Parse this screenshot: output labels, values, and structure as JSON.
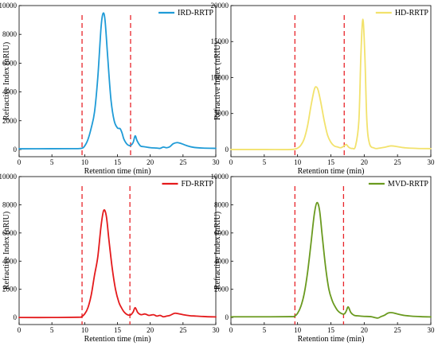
{
  "chart_data": [
    {
      "type": "line",
      "xlabel": "Retention time (min)",
      "ylabel": "Refractive Index (nRIU)",
      "xlim": [
        0,
        30
      ],
      "ylim": [
        -500,
        10000
      ],
      "xticks": [
        0,
        5,
        10,
        15,
        20,
        25,
        30
      ],
      "yticks": [
        0,
        2000,
        4000,
        6000,
        8000,
        10000
      ],
      "grid": false,
      "legend_position": "top-right",
      "vlines": [
        9.6,
        17.0
      ],
      "series": [
        {
          "name": "IRD-RRTP",
          "color": "#1f9bd7",
          "points": [
            [
              0,
              50
            ],
            [
              5,
              55
            ],
            [
              8,
              60
            ],
            [
              9.5,
              80
            ],
            [
              10,
              250
            ],
            [
              10.5,
              700
            ],
            [
              11,
              1500
            ],
            [
              11.5,
              2600
            ],
            [
              12,
              5000
            ],
            [
              12.5,
              8500
            ],
            [
              12.8,
              9450
            ],
            [
              13.1,
              9000
            ],
            [
              13.5,
              6500
            ],
            [
              14,
              3500
            ],
            [
              14.5,
              2000
            ],
            [
              15,
              1500
            ],
            [
              15.4,
              1450
            ],
            [
              15.7,
              1150
            ],
            [
              16,
              700
            ],
            [
              16.5,
              350
            ],
            [
              17,
              280
            ],
            [
              17.4,
              500
            ],
            [
              17.7,
              950
            ],
            [
              18,
              600
            ],
            [
              18.5,
              250
            ],
            [
              19,
              200
            ],
            [
              20,
              130
            ],
            [
              21,
              100
            ],
            [
              21.5,
              80
            ],
            [
              22,
              170
            ],
            [
              22.5,
              120
            ],
            [
              23,
              200
            ],
            [
              23.5,
              400
            ],
            [
              24.1,
              480
            ],
            [
              24.7,
              420
            ],
            [
              25.5,
              280
            ],
            [
              26.5,
              160
            ],
            [
              28,
              100
            ],
            [
              30,
              80
            ]
          ]
        }
      ]
    },
    {
      "type": "line",
      "xlabel": "Retention time (min)",
      "ylabel": "Refractive Index (nRIU)",
      "xlim": [
        0,
        30
      ],
      "ylim": [
        -1000,
        20000
      ],
      "xticks": [
        0,
        5,
        10,
        15,
        20,
        25,
        30
      ],
      "yticks": [
        0,
        5000,
        10000,
        15000,
        20000
      ],
      "grid": false,
      "legend_position": "top-right",
      "vlines": [
        9.6,
        17.0
      ],
      "series": [
        {
          "name": "HD-RRTP",
          "color": "#f2e26c",
          "points": [
            [
              0,
              0
            ],
            [
              5,
              0
            ],
            [
              9,
              0
            ],
            [
              10,
              200
            ],
            [
              10.5,
              600
            ],
            [
              11,
              1500
            ],
            [
              11.5,
              3300
            ],
            [
              12,
              6000
            ],
            [
              12.5,
              8300
            ],
            [
              12.8,
              8700
            ],
            [
              13.1,
              8200
            ],
            [
              13.5,
              6500
            ],
            [
              14,
              4000
            ],
            [
              14.5,
              2000
            ],
            [
              15,
              1000
            ],
            [
              15.5,
              500
            ],
            [
              16,
              350
            ],
            [
              16.5,
              250
            ],
            [
              17,
              500
            ],
            [
              17.3,
              700
            ],
            [
              17.7,
              300
            ],
            [
              18.2,
              150
            ],
            [
              18.7,
              500
            ],
            [
              19.2,
              4000
            ],
            [
              19.5,
              13000
            ],
            [
              19.8,
              18100
            ],
            [
              20.1,
              13000
            ],
            [
              20.4,
              4000
            ],
            [
              20.8,
              800
            ],
            [
              21.5,
              200
            ],
            [
              22,
              150
            ],
            [
              23,
              300
            ],
            [
              24,
              500
            ],
            [
              25,
              400
            ],
            [
              26,
              250
            ],
            [
              28,
              150
            ],
            [
              30,
              120
            ]
          ]
        }
      ]
    },
    {
      "type": "line",
      "xlabel": "Retention time (min)",
      "ylabel": "Refractive Index (nRIU)",
      "xlim": [
        0,
        30
      ],
      "ylim": [
        -500,
        10000
      ],
      "xticks": [
        0,
        5,
        10,
        15,
        20,
        25,
        30
      ],
      "yticks": [
        0,
        2000,
        4000,
        6000,
        8000,
        10000
      ],
      "grid": false,
      "legend_position": "top-right",
      "vlines": [
        9.6,
        16.9
      ],
      "series": [
        {
          "name": "FD-RRTP",
          "color": "#e41a1c",
          "points": [
            [
              0,
              0
            ],
            [
              5,
              0
            ],
            [
              9,
              20
            ],
            [
              9.5,
              50
            ],
            [
              10,
              250
            ],
            [
              10.5,
              700
            ],
            [
              11,
              1600
            ],
            [
              11.5,
              3000
            ],
            [
              12,
              4300
            ],
            [
              12.5,
              6500
            ],
            [
              12.9,
              7600
            ],
            [
              13.3,
              7200
            ],
            [
              13.7,
              5500
            ],
            [
              14.2,
              3500
            ],
            [
              14.7,
              2000
            ],
            [
              15.2,
              1100
            ],
            [
              15.6,
              700
            ],
            [
              16,
              400
            ],
            [
              16.5,
              200
            ],
            [
              17,
              180
            ],
            [
              17.4,
              400
            ],
            [
              17.7,
              700
            ],
            [
              18.1,
              350
            ],
            [
              18.6,
              200
            ],
            [
              19.2,
              250
            ],
            [
              19.8,
              150
            ],
            [
              20.5,
              200
            ],
            [
              21,
              100
            ],
            [
              21.5,
              150
            ],
            [
              22,
              50
            ],
            [
              22.5,
              100
            ],
            [
              23,
              150
            ],
            [
              23.7,
              300
            ],
            [
              24.3,
              270
            ],
            [
              25,
              200
            ],
            [
              26,
              130
            ],
            [
              27,
              100
            ],
            [
              28.5,
              60
            ],
            [
              30,
              40
            ]
          ]
        }
      ]
    },
    {
      "type": "line",
      "xlabel": "Retention time (min)",
      "ylabel": "Refractive Index (nRIU)",
      "xlim": [
        0,
        30
      ],
      "ylim": [
        -500,
        10000
      ],
      "xticks": [
        0,
        5,
        10,
        15,
        20,
        25,
        30
      ],
      "yticks": [
        0,
        2000,
        4000,
        6000,
        8000,
        10000
      ],
      "grid": false,
      "legend_position": "top-right",
      "vlines": [
        9.6,
        16.9
      ],
      "series": [
        {
          "name": "MVD-RRTP",
          "color": "#6a9a1f",
          "points": [
            [
              0,
              50
            ],
            [
              5,
              50
            ],
            [
              9,
              60
            ],
            [
              9.5,
              80
            ],
            [
              10,
              300
            ],
            [
              10.5,
              800
            ],
            [
              11,
              1700
            ],
            [
              11.5,
              3200
            ],
            [
              12,
              5200
            ],
            [
              12.5,
              7300
            ],
            [
              12.9,
              8150
            ],
            [
              13.3,
              7600
            ],
            [
              13.7,
              5800
            ],
            [
              14.2,
              3600
            ],
            [
              14.7,
              2000
            ],
            [
              15.2,
              1200
            ],
            [
              15.6,
              800
            ],
            [
              16,
              500
            ],
            [
              16.5,
              300
            ],
            [
              17,
              250
            ],
            [
              17.3,
              450
            ],
            [
              17.6,
              750
            ],
            [
              18,
              350
            ],
            [
              18.5,
              150
            ],
            [
              19,
              120
            ],
            [
              20,
              80
            ],
            [
              21,
              60
            ],
            [
              22,
              -40
            ],
            [
              22.5,
              60
            ],
            [
              23,
              150
            ],
            [
              23.6,
              320
            ],
            [
              24.2,
              340
            ],
            [
              25,
              250
            ],
            [
              26,
              150
            ],
            [
              27,
              100
            ],
            [
              28.5,
              60
            ],
            [
              30,
              40
            ]
          ]
        }
      ]
    }
  ]
}
